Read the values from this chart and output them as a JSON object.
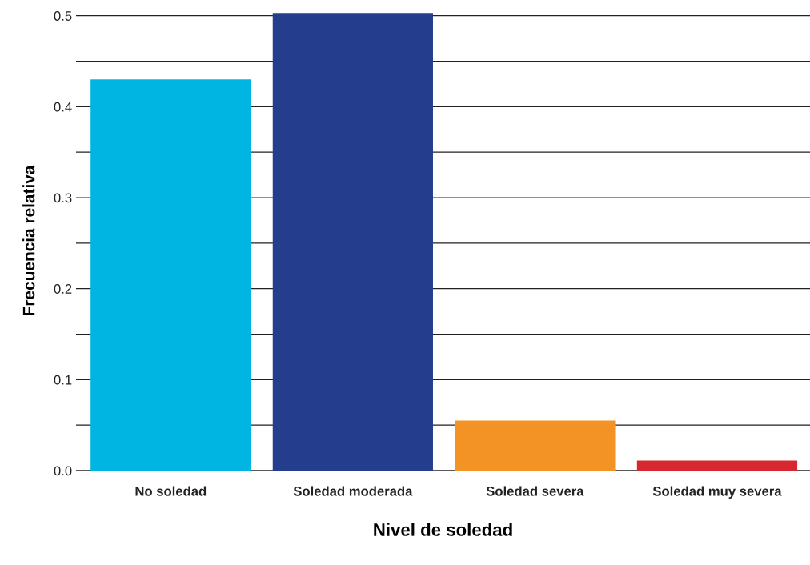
{
  "chart_data": {
    "type": "bar",
    "xlabel": "Nivel de soledad",
    "ylabel": "Frecuencia relativa",
    "categories": [
      "No soledad",
      "Soledad moderada",
      "Soledad severa",
      "Soledad muy severa"
    ],
    "values": [
      0.43,
      0.503,
      0.055,
      0.011
    ],
    "colors": [
      "#00b5e2",
      "#253d8d",
      "#f39325",
      "#d7282f"
    ],
    "ylim": [
      0,
      0.505
    ],
    "yticks": [
      {
        "value": 0,
        "label": "0.0"
      },
      {
        "value": 0.05,
        "label": null
      },
      0.1,
      {
        "value": 0.15,
        "label": null
      },
      0.2,
      {
        "value": 0.25,
        "label": null
      },
      0.3,
      {
        "value": 0.35,
        "label": null
      },
      0.4,
      {
        "value": 0.45,
        "label": null
      },
      0.5
    ],
    "grid": "y"
  }
}
